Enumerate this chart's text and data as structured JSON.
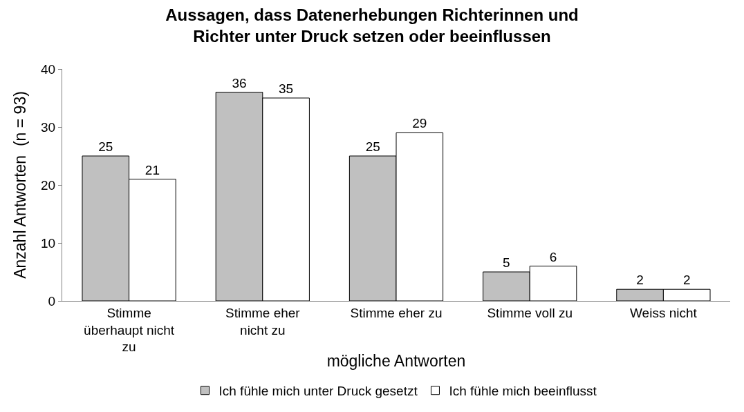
{
  "chart_data": {
    "type": "bar",
    "title": "Aussagen, dass Datenerhebungen Richterinnen und Richter unter Druck setzen oder beeinflussen",
    "categories": [
      "Stimme überhaupt nicht zu",
      "Stimme eher nicht zu",
      "Stimme eher zu",
      "Stimme voll zu",
      "Weiss nicht"
    ],
    "series": [
      {
        "name": "Ich fühle mich unter Druck gesetzt",
        "color": "#c0c0c0",
        "values": [
          25,
          36,
          25,
          5,
          2
        ]
      },
      {
        "name": "Ich fühle mich beeinflusst",
        "color": "#ffffff",
        "values": [
          21,
          35,
          29,
          6,
          2
        ]
      }
    ],
    "xlabel": "mögliche Antworten",
    "ylabel": "Anzahl Antworten  (n = 93)",
    "ylim": [
      0,
      40
    ],
    "yticks": [
      0,
      10,
      20,
      30,
      40
    ],
    "legend": "bottom",
    "data_labels": true
  }
}
